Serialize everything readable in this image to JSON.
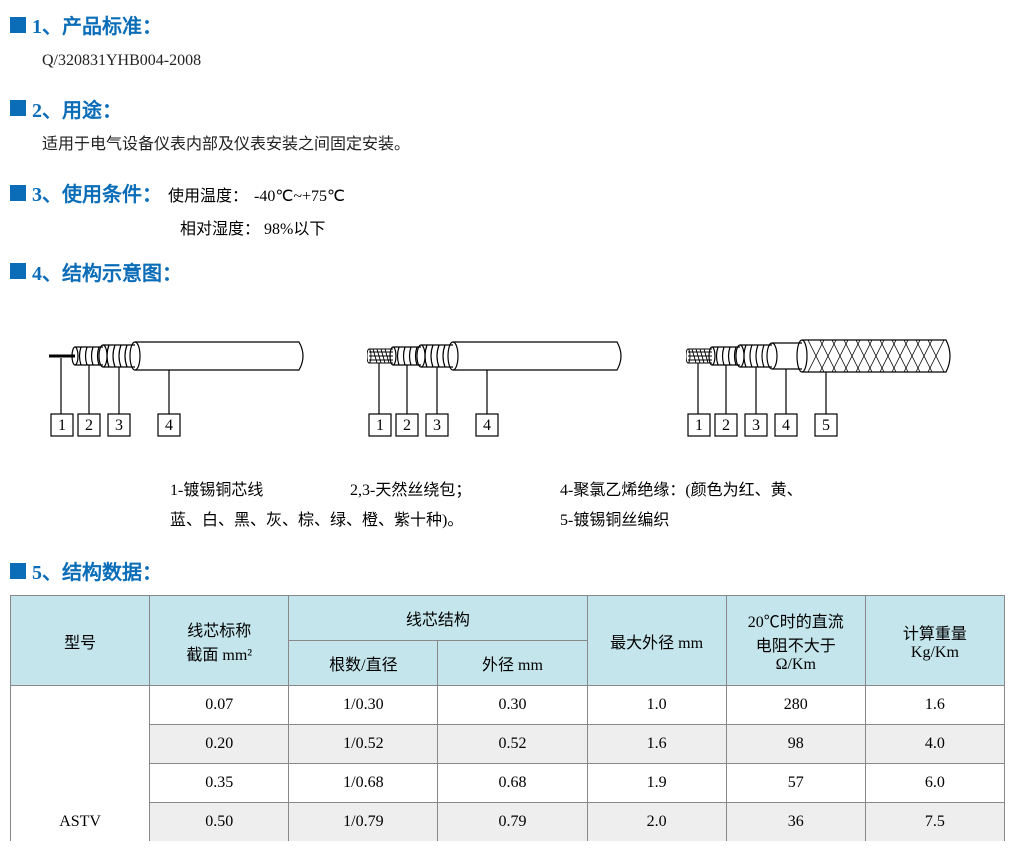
{
  "sections": {
    "s1": {
      "title": "1、产品标准：",
      "text": "Q/320831YHB004-2008"
    },
    "s2": {
      "title": "2、用途：",
      "text": "适用于电气设备仪表内部及仪表安装之间固定安装。"
    },
    "s3": {
      "title": "3、使用条件：",
      "temp_label": "使用温度：",
      "temp_value": "-40℃~+75℃",
      "hum_label": "相对湿度：",
      "hum_value": "98%以下"
    },
    "s4": {
      "title": "4、结构示意图："
    },
    "s5": {
      "title": "5、结构数据："
    }
  },
  "diagram": {
    "pointer_labels": {
      "n1": "1",
      "n2": "2",
      "n3": "3",
      "n4": "4",
      "n5": "5"
    },
    "stroke": "#000000",
    "stroke_width": 1.2
  },
  "legend": {
    "l1": "1-镀锡铜芯线",
    "l23": "2,3-天然丝绕包；",
    "l4": "4-聚氯乙烯绝缘：(颜色为红、黄、",
    "l4b": "蓝、白、黑、灰、棕、绿、橙、紫十种)。",
    "l5": "5-镀锡铜丝编织"
  },
  "table": {
    "headers": {
      "model": "型号",
      "cross_section": "线芯标称",
      "cross_section_unit": "截面 mm²",
      "core_struct": "线芯结构",
      "strands": "根数/直径",
      "od_core": "外径 mm",
      "max_od": "最大外径 mm",
      "resistance_l1": "20℃时的直流",
      "resistance_l2": "电阻不大于",
      "resistance_l3": "Ω/Km",
      "weight_l1": "计算重量",
      "weight_l2": "Kg/Km"
    },
    "model": "ASTV",
    "rows": [
      {
        "cs": "0.07",
        "sd": "1/0.30",
        "od": "0.30",
        "maxod": "1.0",
        "res": "280",
        "wt": "1.6",
        "alt": false
      },
      {
        "cs": "0.20",
        "sd": "1/0.52",
        "od": "0.52",
        "maxod": "1.6",
        "res": "98",
        "wt": "4.0",
        "alt": true
      },
      {
        "cs": "0.35",
        "sd": "1/0.68",
        "od": "0.68",
        "maxod": "1.9",
        "res": "57",
        "wt": "6.0",
        "alt": false
      },
      {
        "cs": "0.50",
        "sd": "1/0.79",
        "od": "0.79",
        "maxod": "2.0",
        "res": "36",
        "wt": "7.5",
        "alt": true
      }
    ],
    "header_bg": "#c3e5eb",
    "alt_bg": "#eeeeee",
    "border_color": "#888888"
  }
}
